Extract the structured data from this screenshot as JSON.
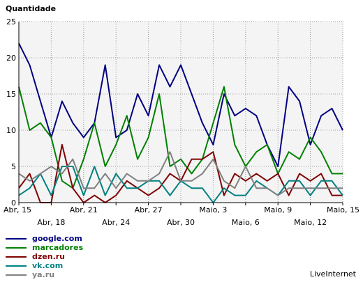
{
  "chart_data": {
    "type": "line",
    "ylabel": "Quantidade",
    "ylim": [
      0,
      25
    ],
    "yticks": [
      0,
      5,
      10,
      15,
      20,
      25
    ],
    "grid": true,
    "x": [
      "Abr, 15",
      "Abr, 16",
      "Abr, 17",
      "Abr, 18",
      "Abr, 19",
      "Abr, 20",
      "Abr, 21",
      "Abr, 22",
      "Abr, 23",
      "Abr, 24",
      "Abr, 25",
      "Abr, 26",
      "Abr, 27",
      "Abr, 28",
      "Abr, 29",
      "Abr, 30",
      "Maio, 1",
      "Maio, 2",
      "Maio, 3",
      "Maio, 4",
      "Maio, 5",
      "Maio, 6",
      "Maio, 7",
      "Maio, 8",
      "Maio, 9",
      "Maio, 10",
      "Maio, 11",
      "Maio, 12",
      "Maio, 13",
      "Maio, 14",
      "Maio, 15"
    ],
    "xtick_labels": [
      {
        "index": 0,
        "label": "Abr, 15"
      },
      {
        "index": 3,
        "label": "Abr, 18"
      },
      {
        "index": 6,
        "label": "Abr, 21"
      },
      {
        "index": 9,
        "label": "Abr, 24"
      },
      {
        "index": 12,
        "label": "Abr, 27"
      },
      {
        "index": 15,
        "label": "Abr, 30"
      },
      {
        "index": 18,
        "label": "Maio, 3"
      },
      {
        "index": 21,
        "label": "Maio, 6"
      },
      {
        "index": 24,
        "label": "Maio, 9"
      },
      {
        "index": 27,
        "label": "Maio, 12"
      },
      {
        "index": 30,
        "label": "Maio, 15"
      }
    ],
    "series": [
      {
        "name": "google.com",
        "color": "#000080",
        "values": [
          22,
          19,
          14,
          9,
          14,
          11,
          9,
          11,
          19,
          9,
          10,
          15,
          12,
          19,
          16,
          19,
          15,
          11,
          8,
          15,
          12,
          13,
          12,
          8,
          5,
          16,
          14,
          8,
          12,
          13,
          10
        ]
      },
      {
        "name": "marcadores",
        "color": "#008000",
        "values": [
          16,
          10,
          11,
          9,
          3,
          2,
          6,
          11,
          5,
          8,
          12,
          6,
          9,
          15,
          5,
          6,
          4,
          6,
          11,
          16,
          8,
          5,
          7,
          8,
          4,
          7,
          6,
          9,
          7,
          4,
          4
        ]
      },
      {
        "name": "dzen.ru",
        "color": "#800000",
        "values": [
          2,
          4,
          0,
          0,
          8,
          2,
          0,
          1,
          0,
          1,
          3,
          2,
          1,
          2,
          4,
          3,
          6,
          6,
          7,
          1,
          4,
          3,
          4,
          3,
          4,
          1,
          4,
          3,
          4,
          1,
          1
        ]
      },
      {
        "name": "vk.com",
        "color": "#008080",
        "values": [
          1,
          2,
          4,
          1,
          5,
          5,
          1,
          5,
          1,
          4,
          2,
          2,
          3,
          3,
          1,
          3,
          2,
          2,
          0,
          2,
          1,
          1,
          3,
          2,
          1,
          3,
          3,
          1,
          3,
          3,
          1
        ]
      },
      {
        "name": "ya.ru",
        "color": "#808080",
        "values": [
          4,
          3,
          4,
          5,
          4,
          6,
          2,
          2,
          4,
          2,
          4,
          3,
          3,
          4,
          7,
          3,
          3,
          4,
          6,
          3,
          2,
          5,
          2,
          2,
          1,
          2,
          2,
          2,
          2,
          2,
          2
        ]
      }
    ]
  },
  "footer": {
    "brand": "LiveInternet"
  }
}
